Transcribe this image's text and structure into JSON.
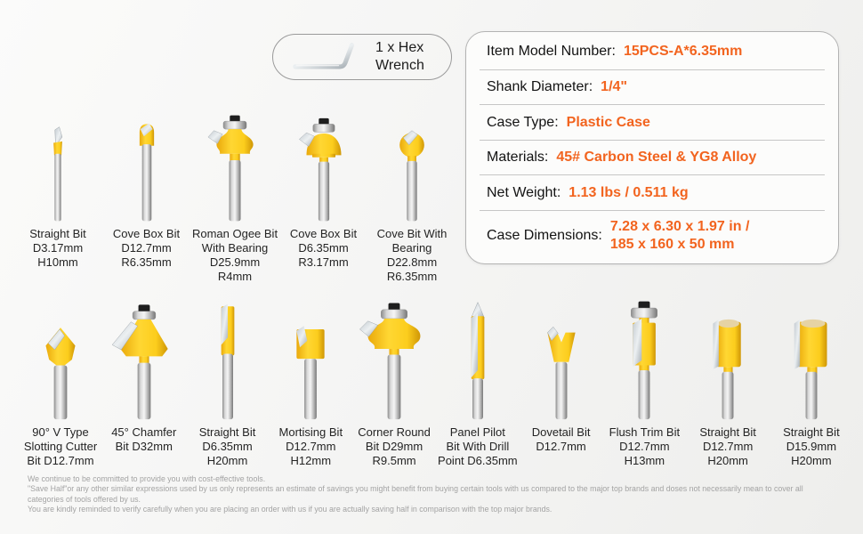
{
  "colors": {
    "accent": "#f2641f",
    "bit_yellow": "#ffd733",
    "steel_silver": "#c0c0c0",
    "background": "#f4f4f3",
    "label_text": "#242424",
    "disclaimer_text": "#a3a3a3"
  },
  "wrench": {
    "icon": "hex-wrench-icon",
    "label_line1": "1 x Hex",
    "label_line2": "Wrench"
  },
  "specs": [
    {
      "label": "Item Model Number:",
      "value_lines": [
        "15PCS-A*6.35mm"
      ]
    },
    {
      "label": "Shank Diameter:",
      "value_lines": [
        "1/4\""
      ]
    },
    {
      "label": "Case Type:",
      "value_lines": [
        "Plastic Case"
      ]
    },
    {
      "label": "Materials:",
      "value_lines": [
        "45# Carbon Steel & YG8 Alloy"
      ]
    },
    {
      "label": "Net Weight:",
      "value_lines": [
        "1.13 lbs / 0.511 kg"
      ]
    },
    {
      "label": "Case Dimensions:",
      "value_lines": [
        "7.28 x 6.30 x 1.97 in /",
        "185 x 160 x 50 mm"
      ]
    }
  ],
  "top_row": [
    {
      "shape": "straight-thin-bit",
      "lines": [
        "Straight Bit",
        "D3.17mm",
        "H10mm"
      ]
    },
    {
      "shape": "round-nose-bit",
      "lines": [
        "Cove Box Bit",
        "D12.7mm",
        "R6.35mm"
      ]
    },
    {
      "shape": "ogee-bearing-bit",
      "lines": [
        "Roman Ogee Bit",
        "With Bearing",
        "D25.9mm",
        "R4mm"
      ]
    },
    {
      "shape": "cove-dome-bearing-bit",
      "lines": [
        "Cove Box Bit",
        "D6.35mm",
        "R3.17mm"
      ]
    },
    {
      "shape": "ball-bearing-bit",
      "lines": [
        "Cove Bit With",
        "Bearing",
        "D22.8mm",
        "R6.35mm"
      ]
    }
  ],
  "bottom_row": [
    {
      "shape": "v-slot-bit",
      "lines": [
        "90° V Type",
        "Slotting Cutter",
        "Bit D12.7mm"
      ]
    },
    {
      "shape": "chamfer-bit",
      "lines": [
        "45° Chamfer",
        "Bit D32mm"
      ]
    },
    {
      "shape": "straight-long-bit",
      "lines": [
        "Straight Bit",
        "D6.35mm",
        "H20mm"
      ]
    },
    {
      "shape": "mortise-bit",
      "lines": [
        "Mortising Bit",
        "D12.7mm",
        "H12mm"
      ]
    },
    {
      "shape": "corner-round-bit",
      "lines": [
        "Corner Round",
        "Bit D29mm",
        "R9.5mm"
      ]
    },
    {
      "shape": "panel-pilot-bit",
      "lines": [
        "Panel Pilot",
        "Bit With Drill",
        "Point D6.35mm"
      ]
    },
    {
      "shape": "dovetail-bit",
      "lines": [
        "Dovetail Bit",
        "D12.7mm"
      ]
    },
    {
      "shape": "flush-trim-bit",
      "lines": [
        "Flush Trim Bit",
        "D12.7mm",
        "H13mm"
      ]
    },
    {
      "shape": "straight-wide-bit",
      "lines": [
        "Straight Bit",
        "D12.7mm",
        "H20mm"
      ]
    },
    {
      "shape": "straight-wider-bit",
      "lines": [
        "Straight Bit",
        "D15.9mm",
        "H20mm"
      ]
    }
  ],
  "disclaimer_lines": [
    "We continue to be committed to provide you with cost-effective tools.",
    "\"Save Half\"or any other similar expressions used by us only represents an estimate of savings you might benefit from buying certain tools with us compared to the major top brands and doses not necessarily mean to cover all",
    "categories of tools offered by us.",
    "You are kindly reminded to verify carefully when you are placing an order with us if you are actually saving half in comparison with the top major brands."
  ]
}
